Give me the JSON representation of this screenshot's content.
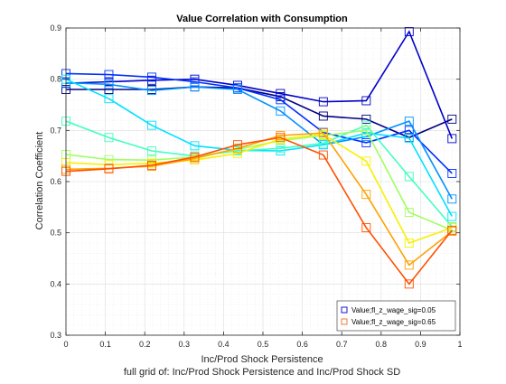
{
  "chart_data": {
    "type": "line",
    "title": "Value Correlation with Consumption",
    "xlabel": "Inc/Prod Shock Persistence",
    "ylabel": "Correlation Coefficient",
    "footnote": "full grid of: Inc/Prod Shock Persistence and Inc/Prod Shock SD",
    "xlim": [
      0,
      1
    ],
    "ylim": [
      0.3,
      0.9
    ],
    "xticks": [
      0,
      0.1,
      0.2,
      0.3,
      0.4,
      0.5,
      0.6,
      0.7,
      0.8,
      0.9,
      1
    ],
    "yticks": [
      0.3,
      0.4,
      0.5,
      0.6,
      0.7,
      0.8,
      0.9
    ],
    "grid": true,
    "minor_grid": true,
    "legend_location": "bottom-right",
    "legend": [
      {
        "label": "Value;fl_z_wage_sig=0.05",
        "color": "#0000c8"
      },
      {
        "label": "Value;fl_z_wage_sig=0.65",
        "color": "#f07020"
      }
    ],
    "x": [
      0,
      0.1089,
      0.2178,
      0.3267,
      0.4356,
      0.5444,
      0.6533,
      0.7622,
      0.8711,
      0.98
    ],
    "series": [
      {
        "color": "#00007f",
        "values": [
          0.78,
          0.78,
          0.78,
          0.785,
          0.783,
          0.766,
          0.728,
          0.722,
          0.686,
          0.722
        ]
      },
      {
        "color": "#0000c8",
        "values": [
          0.792,
          0.795,
          0.798,
          0.8,
          0.788,
          0.772,
          0.756,
          0.758,
          0.893,
          0.684
        ]
      },
      {
        "color": "#0030ff",
        "values": [
          0.811,
          0.809,
          0.804,
          0.795,
          0.783,
          0.76,
          0.696,
          0.676,
          0.7,
          0.616
        ]
      },
      {
        "color": "#0090ff",
        "values": [
          0.793,
          0.79,
          0.778,
          0.785,
          0.78,
          0.738,
          0.672,
          0.688,
          0.718,
          0.566
        ]
      },
      {
        "color": "#00e0ff",
        "values": [
          0.8,
          0.762,
          0.71,
          0.67,
          0.661,
          0.66,
          0.672,
          0.695,
          0.685,
          0.532
        ]
      },
      {
        "color": "#40ffc0",
        "values": [
          0.718,
          0.686,
          0.66,
          0.65,
          0.66,
          0.665,
          0.675,
          0.71,
          0.61,
          0.512
        ]
      },
      {
        "color": "#a0ff60",
        "values": [
          0.653,
          0.643,
          0.642,
          0.648,
          0.663,
          0.68,
          0.69,
          0.7,
          0.54,
          0.505
        ]
      },
      {
        "color": "#f8f000",
        "values": [
          0.637,
          0.633,
          0.636,
          0.642,
          0.655,
          0.683,
          0.692,
          0.64,
          0.48,
          0.51
        ]
      },
      {
        "color": "#ffa000",
        "values": [
          0.624,
          0.626,
          0.63,
          0.645,
          0.665,
          0.69,
          0.695,
          0.575,
          0.437,
          0.503
        ]
      },
      {
        "color": "#ff5000",
        "values": [
          0.62,
          0.625,
          0.632,
          0.648,
          0.672,
          0.686,
          0.652,
          0.51,
          0.4,
          0.505
        ]
      }
    ]
  }
}
